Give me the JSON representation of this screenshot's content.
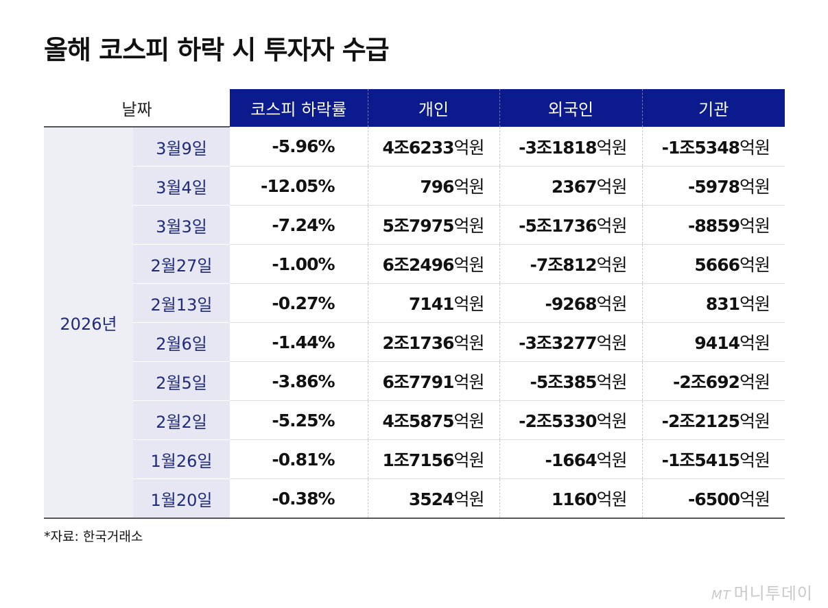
{
  "title": "올해 코스피 하락 시 투자자 수급",
  "source": "*자료: 한국거래소",
  "logo": {
    "mark": "MT",
    "name": "머니투데이"
  },
  "colors": {
    "header_bg": "#0b1a8c",
    "date_bg": "#e6e7f2",
    "date_text": "#1f2a7a"
  },
  "chart_data": {
    "type": "table",
    "title": "올해 코스피 하락 시 투자자 수급",
    "columns": [
      "날짜",
      "코스피 하락률",
      "개인",
      "외국인",
      "기관"
    ],
    "year": "2026년",
    "unit": "억원",
    "rows": [
      {
        "date": "3월9일",
        "decline": "-5.96%",
        "individual": "4조6233",
        "foreign": "-3조1818",
        "institution": "-1조5348"
      },
      {
        "date": "3월4일",
        "decline": "-12.05%",
        "individual": "796",
        "foreign": "2367",
        "institution": "-5978"
      },
      {
        "date": "3월3일",
        "decline": "-7.24%",
        "individual": "5조7975",
        "foreign": "-5조1736",
        "institution": "-8859"
      },
      {
        "date": "2월27일",
        "decline": "-1.00%",
        "individual": "6조2496",
        "foreign": "-7조812",
        "institution": "5666"
      },
      {
        "date": "2월13일",
        "decline": "-0.27%",
        "individual": "7141",
        "foreign": "-9268",
        "institution": "831"
      },
      {
        "date": "2월6일",
        "decline": "-1.44%",
        "individual": "2조1736",
        "foreign": "-3조3277",
        "institution": "9414"
      },
      {
        "date": "2월5일",
        "decline": "-3.86%",
        "individual": "6조7791",
        "foreign": "-5조385",
        "institution": "-2조692"
      },
      {
        "date": "2월2일",
        "decline": "-5.25%",
        "individual": "4조5875",
        "foreign": "-2조5330",
        "institution": "-2조2125"
      },
      {
        "date": "1월26일",
        "decline": "-0.81%",
        "individual": "1조7156",
        "foreign": "-1664",
        "institution": "-1조5415"
      },
      {
        "date": "1월20일",
        "decline": "-0.38%",
        "individual": "3524",
        "foreign": "1160",
        "institution": "-6500"
      }
    ]
  }
}
